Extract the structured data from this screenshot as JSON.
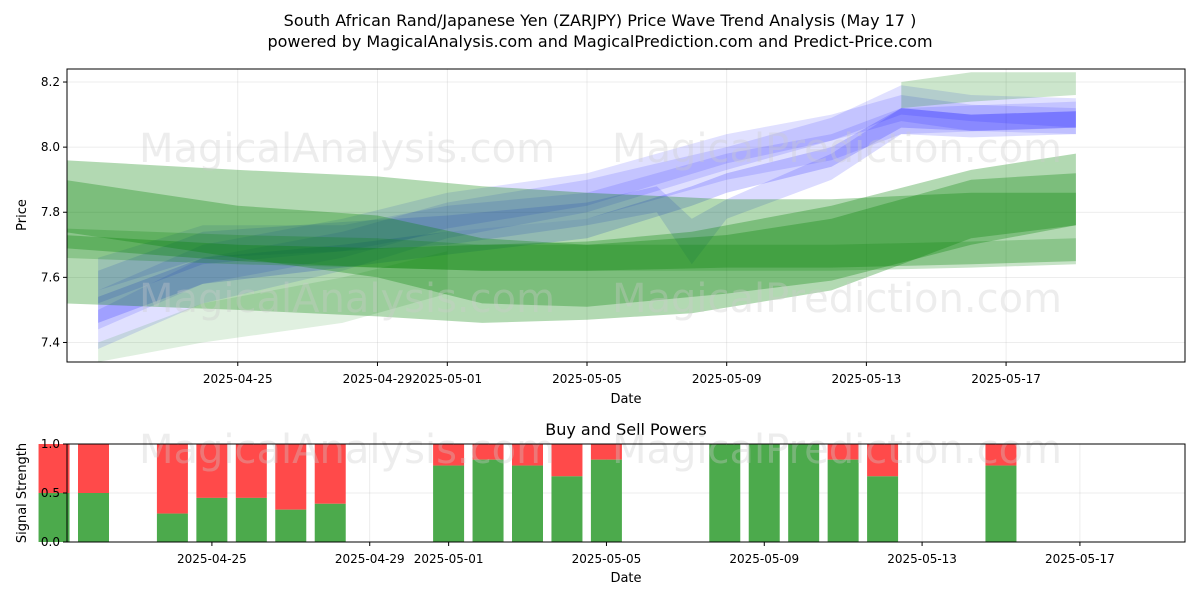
{
  "chart_data": [
    {
      "type": "area",
      "title": "South African Rand/Japanese Yen (ZARJPY) Price Wave Trend Analysis (May 17 )",
      "subtitle": "powered by MagicalAnalysis.com and MagicalPrediction.com and Predict-Price.com",
      "xlabel": "Date",
      "ylabel": "Price",
      "ylim": [
        7.34,
        8.24
      ],
      "xlim": [
        "2025-04-20",
        "2025-05-20"
      ],
      "yticks": [
        7.4,
        7.6,
        7.8,
        8.0,
        8.2
      ],
      "xticks": [
        "2025-04-25",
        "2025-04-29",
        "2025-05-01",
        "2025-05-05",
        "2025-05-09",
        "2025-05-13",
        "2025-05-17"
      ],
      "grid": true,
      "watermarks": [
        "MagicalAnalysis.com",
        "MagicalPrediction.com"
      ],
      "series": [
        {
          "color": "#0000ff",
          "opacity": 0.12,
          "x": [
            "2025-04-21",
            "2025-04-24",
            "2025-04-28",
            "2025-05-01",
            "2025-05-05",
            "2025-05-09",
            "2025-05-12",
            "2025-05-14",
            "2025-05-16",
            "2025-05-19"
          ],
          "upper": [
            7.5,
            7.66,
            7.74,
            7.83,
            7.9,
            8.0,
            8.09,
            8.19,
            8.16,
            8.15
          ],
          "lower": [
            7.38,
            7.52,
            7.62,
            7.72,
            7.8,
            7.93,
            8.02,
            8.1,
            8.08,
            8.06
          ]
        },
        {
          "color": "#0000ff",
          "opacity": 0.12,
          "x": [
            "2025-04-21",
            "2025-04-24",
            "2025-04-28",
            "2025-05-01",
            "2025-05-05",
            "2025-05-09",
            "2025-05-12",
            "2025-05-14",
            "2025-05-16",
            "2025-05-19"
          ],
          "upper": [
            7.56,
            7.7,
            7.78,
            7.86,
            7.92,
            8.04,
            8.1,
            8.16,
            8.13,
            8.12
          ],
          "lower": [
            7.44,
            7.58,
            7.66,
            7.75,
            7.82,
            7.95,
            8.02,
            8.08,
            8.05,
            8.04
          ]
        },
        {
          "color": "#0000ff",
          "opacity": 0.14,
          "x": [
            "2025-04-21",
            "2025-04-24",
            "2025-04-28",
            "2025-05-01",
            "2025-05-05",
            "2025-05-07",
            "2025-05-08",
            "2025-05-09",
            "2025-05-12",
            "2025-05-14",
            "2025-05-16",
            "2025-05-19"
          ],
          "upper": [
            7.62,
            7.74,
            7.77,
            7.79,
            7.83,
            7.88,
            7.78,
            7.84,
            7.98,
            8.12,
            8.1,
            8.11
          ],
          "lower": [
            7.52,
            7.64,
            7.68,
            7.7,
            7.76,
            7.8,
            7.64,
            7.78,
            7.9,
            8.04,
            8.03,
            8.04
          ]
        },
        {
          "color": "#0000ff",
          "opacity": 0.18,
          "x": [
            "2025-04-21",
            "2025-04-24",
            "2025-04-28",
            "2025-05-01",
            "2025-05-05",
            "2025-05-08",
            "2025-05-09",
            "2025-05-12",
            "2025-05-14",
            "2025-05-16",
            "2025-05-19"
          ],
          "upper": [
            7.54,
            7.66,
            7.7,
            7.74,
            7.78,
            7.88,
            7.92,
            8.0,
            8.12,
            8.1,
            8.11
          ],
          "lower": [
            7.46,
            7.58,
            7.63,
            7.67,
            7.72,
            7.82,
            7.86,
            7.94,
            8.06,
            8.05,
            8.06
          ]
        },
        {
          "color": "#0000ff",
          "opacity": 0.12,
          "x": [
            "2025-04-21",
            "2025-04-24",
            "2025-04-28",
            "2025-05-01",
            "2025-05-05",
            "2025-05-09",
            "2025-05-12",
            "2025-05-14",
            "2025-05-19"
          ],
          "upper": [
            7.66,
            7.76,
            7.76,
            7.82,
            7.86,
            7.98,
            8.04,
            8.12,
            8.14
          ],
          "lower": [
            7.56,
            7.66,
            7.68,
            7.74,
            7.78,
            7.9,
            7.96,
            8.04,
            8.06
          ]
        },
        {
          "color": "#008000",
          "opacity": 0.3,
          "x": [
            "2025-04-20",
            "2025-04-25",
            "2025-04-29",
            "2025-05-02",
            "2025-05-05",
            "2025-05-09",
            "2025-05-12",
            "2025-05-16",
            "2025-05-19"
          ],
          "upper": [
            7.96,
            7.93,
            7.91,
            7.88,
            7.86,
            7.84,
            7.84,
            7.86,
            7.86
          ],
          "lower": [
            7.69,
            7.65,
            7.63,
            7.62,
            7.62,
            7.63,
            7.63,
            7.64,
            7.65
          ]
        },
        {
          "color": "#008000",
          "opacity": 0.3,
          "x": [
            "2025-04-20",
            "2025-04-25",
            "2025-04-29",
            "2025-05-02",
            "2025-05-05",
            "2025-05-09",
            "2025-05-12",
            "2025-05-16",
            "2025-05-19"
          ],
          "upper": [
            7.9,
            7.82,
            7.79,
            7.72,
            7.7,
            7.73,
            7.78,
            7.9,
            7.92
          ],
          "lower": [
            7.74,
            7.66,
            7.6,
            7.52,
            7.51,
            7.55,
            7.59,
            7.7,
            7.76
          ]
        },
        {
          "color": "#008000",
          "opacity": 0.3,
          "x": [
            "2025-04-20",
            "2025-04-25",
            "2025-04-29",
            "2025-05-02",
            "2025-05-05",
            "2025-05-08",
            "2025-05-12",
            "2025-05-16",
            "2025-05-19"
          ],
          "upper": [
            7.73,
            7.7,
            7.69,
            7.7,
            7.71,
            7.74,
            7.82,
            7.93,
            7.98
          ],
          "lower": [
            7.52,
            7.5,
            7.48,
            7.46,
            7.47,
            7.49,
            7.56,
            7.72,
            7.76
          ]
        },
        {
          "color": "#008000",
          "opacity": 0.22,
          "x": [
            "2025-04-20",
            "2025-04-25",
            "2025-04-29",
            "2025-05-02",
            "2025-05-05",
            "2025-05-09",
            "2025-05-12",
            "2025-05-16",
            "2025-05-19"
          ],
          "upper": [
            7.75,
            7.73,
            7.72,
            7.7,
            7.7,
            7.7,
            7.7,
            7.71,
            7.72
          ],
          "lower": [
            7.66,
            7.64,
            7.63,
            7.62,
            7.62,
            7.62,
            7.62,
            7.63,
            7.64
          ]
        },
        {
          "color": "#008000",
          "opacity": 0.2,
          "x": [
            "2025-05-14",
            "2025-05-16",
            "2025-05-19"
          ],
          "upper": [
            8.2,
            8.23,
            8.23
          ],
          "lower": [
            8.12,
            8.14,
            8.16
          ]
        },
        {
          "color": "#008000",
          "opacity": 0.12,
          "x": [
            "2025-04-21",
            "2025-04-24",
            "2025-04-28",
            "2025-05-01"
          ],
          "upper": [
            7.4,
            7.52,
            7.6,
            7.68
          ],
          "lower": [
            7.34,
            7.4,
            7.46,
            7.55
          ]
        }
      ]
    },
    {
      "type": "bar",
      "title": "Buy and Sell Powers",
      "xlabel": "Date",
      "ylabel": "Signal Strength",
      "ylim": [
        0,
        1
      ],
      "yticks": [
        "0.0",
        "0.5",
        "1.0"
      ],
      "xticks": [
        "2025-04-25",
        "2025-04-29",
        "2025-05-01",
        "2025-05-05",
        "2025-05-09",
        "2025-05-13",
        "2025-05-17"
      ],
      "grid": true,
      "buy_color": "#4caa4c",
      "sell_color": "#ff4a4a",
      "categories": [
        "2025-04-22",
        "2025-04-23",
        "2025-04-25",
        "2025-04-26",
        "2025-04-27",
        "2025-04-28",
        "2025-04-29",
        "2025-05-02",
        "2025-05-03",
        "2025-05-04",
        "2025-05-05",
        "2025-05-06",
        "2025-05-09",
        "2025-05-10",
        "2025-05-11",
        "2025-05-12",
        "2025-05-13",
        "2025-05-16"
      ],
      "buy": [
        0.5,
        0.5,
        0.29,
        0.45,
        0.45,
        0.33,
        0.39,
        0.78,
        0.84,
        0.78,
        0.67,
        0.84,
        1.0,
        1.0,
        1.0,
        0.84,
        0.67,
        0.78
      ]
    }
  ]
}
